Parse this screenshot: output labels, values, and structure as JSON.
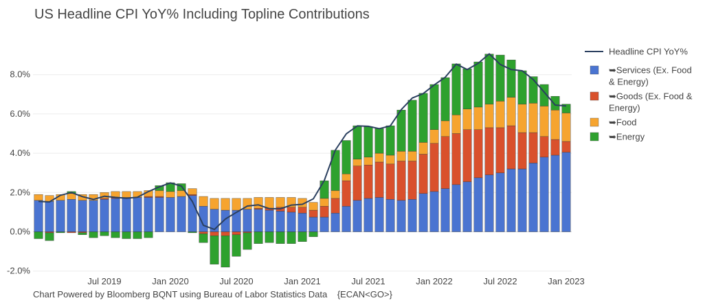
{
  "chart_data": {
    "type": "bar",
    "title": "US Headline CPI YoY% Including Topline Contributions",
    "footer": "Chart Powered by Bloomberg BQNT using Bureau of Labor Statistics Data",
    "footer_code": "{ECAN<GO>}",
    "xlabel": "",
    "ylabel": "",
    "ylim": [
      -2.0,
      9.5
    ],
    "yticks": [
      "-2.0%",
      "0.0%",
      "2.0%",
      "4.0%",
      "6.0%",
      "8.0%"
    ],
    "ytick_values": [
      -2,
      0,
      2,
      4,
      6,
      8
    ],
    "xticks": [
      "Jul 2019",
      "Jan 2020",
      "Jul 2020",
      "Jan 2021",
      "Jul 2021",
      "Jan 2022",
      "Jul 2022",
      "Jan 2023"
    ],
    "xtick_index": [
      6,
      12,
      18,
      24,
      30,
      36,
      42,
      48
    ],
    "grid": true,
    "legend_position": "right",
    "categories": [
      "2019-01",
      "2019-02",
      "2019-03",
      "2019-04",
      "2019-05",
      "2019-06",
      "2019-07",
      "2019-08",
      "2019-09",
      "2019-10",
      "2019-11",
      "2019-12",
      "2020-01",
      "2020-02",
      "2020-03",
      "2020-04",
      "2020-05",
      "2020-06",
      "2020-07",
      "2020-08",
      "2020-09",
      "2020-10",
      "2020-11",
      "2020-12",
      "2021-01",
      "2021-02",
      "2021-03",
      "2021-04",
      "2021-05",
      "2021-06",
      "2021-07",
      "2021-08",
      "2021-09",
      "2021-10",
      "2021-11",
      "2021-12",
      "2022-01",
      "2022-02",
      "2022-03",
      "2022-04",
      "2022-05",
      "2022-06",
      "2022-07",
      "2022-08",
      "2022-09",
      "2022-10",
      "2022-11",
      "2022-12",
      "2023-01"
    ],
    "series": [
      {
        "name": "Headline CPI YoY%",
        "kind": "line",
        "color": "#2a3f5f",
        "values": [
          1.55,
          1.52,
          1.86,
          2.0,
          1.79,
          1.65,
          1.81,
          1.75,
          1.71,
          1.76,
          2.05,
          2.29,
          2.49,
          2.33,
          1.54,
          0.33,
          0.12,
          0.65,
          0.99,
          1.31,
          1.37,
          1.18,
          1.17,
          1.36,
          1.4,
          1.68,
          2.62,
          4.16,
          4.99,
          5.39,
          5.37,
          5.25,
          5.39,
          6.22,
          6.81,
          7.04,
          7.48,
          7.87,
          8.54,
          8.26,
          8.58,
          9.06,
          8.52,
          8.26,
          8.2,
          7.75,
          7.11,
          6.45,
          6.41
        ]
      },
      {
        "name": "➥Services (Ex. Food & Energy)",
        "kind": "bar",
        "color": "#4a74d1",
        "values": [
          1.6,
          1.55,
          1.6,
          1.65,
          1.6,
          1.6,
          1.65,
          1.7,
          1.7,
          1.75,
          1.75,
          1.75,
          1.75,
          1.8,
          1.85,
          1.3,
          1.15,
          1.1,
          1.1,
          1.15,
          1.15,
          1.1,
          1.05,
          1.0,
          0.95,
          0.75,
          0.75,
          0.95,
          1.3,
          1.6,
          1.7,
          1.75,
          1.65,
          1.6,
          1.65,
          1.95,
          2.05,
          2.2,
          2.4,
          2.55,
          2.75,
          2.9,
          3.0,
          3.2,
          3.2,
          3.5,
          3.8,
          3.9,
          4.05
        ]
      },
      {
        "name": "➥Goods (Ex. Food & Energy)",
        "kind": "bar",
        "color": "#d9512c",
        "values": [
          0.0,
          -0.05,
          0.0,
          -0.05,
          -0.05,
          0.0,
          0.05,
          0.05,
          0.05,
          0.0,
          0.05,
          0.05,
          0.0,
          0.0,
          0.05,
          -0.1,
          -0.2,
          -0.2,
          -0.15,
          -0.05,
          0.05,
          0.1,
          0.2,
          0.25,
          0.3,
          0.35,
          0.55,
          0.75,
          1.3,
          1.75,
          1.7,
          1.8,
          1.8,
          2.0,
          1.95,
          2.0,
          2.45,
          2.65,
          2.6,
          2.65,
          2.45,
          2.4,
          2.3,
          2.2,
          1.85,
          1.55,
          1.05,
          0.8,
          0.55
        ]
      },
      {
        "name": "➥Food",
        "kind": "bar",
        "color": "#f6a42f",
        "values": [
          0.3,
          0.3,
          0.3,
          0.3,
          0.3,
          0.3,
          0.3,
          0.3,
          0.3,
          0.3,
          0.3,
          0.3,
          0.3,
          0.3,
          0.3,
          0.5,
          0.55,
          0.6,
          0.6,
          0.55,
          0.55,
          0.55,
          0.5,
          0.5,
          0.45,
          0.4,
          0.4,
          0.4,
          0.35,
          0.35,
          0.4,
          0.45,
          0.45,
          0.5,
          0.5,
          0.6,
          0.7,
          0.8,
          0.95,
          1.05,
          1.15,
          1.2,
          1.35,
          1.45,
          1.45,
          1.5,
          1.55,
          1.5,
          1.45
        ]
      },
      {
        "name": "➥Energy",
        "kind": "bar",
        "color": "#2ea12e",
        "values": [
          -0.35,
          -0.4,
          -0.05,
          0.1,
          -0.1,
          -0.3,
          -0.2,
          -0.3,
          -0.35,
          -0.35,
          -0.3,
          0.25,
          0.45,
          0.35,
          -0.05,
          -0.45,
          -1.45,
          -1.6,
          -1.1,
          -0.85,
          -0.6,
          -0.55,
          -0.6,
          -0.6,
          -0.5,
          -0.25,
          0.9,
          2.05,
          1.7,
          1.7,
          1.55,
          1.25,
          1.5,
          2.1,
          2.6,
          2.5,
          2.3,
          2.2,
          2.6,
          2.05,
          2.3,
          2.55,
          2.35,
          1.9,
          1.7,
          1.35,
          1.1,
          0.7,
          0.45
        ]
      }
    ]
  }
}
